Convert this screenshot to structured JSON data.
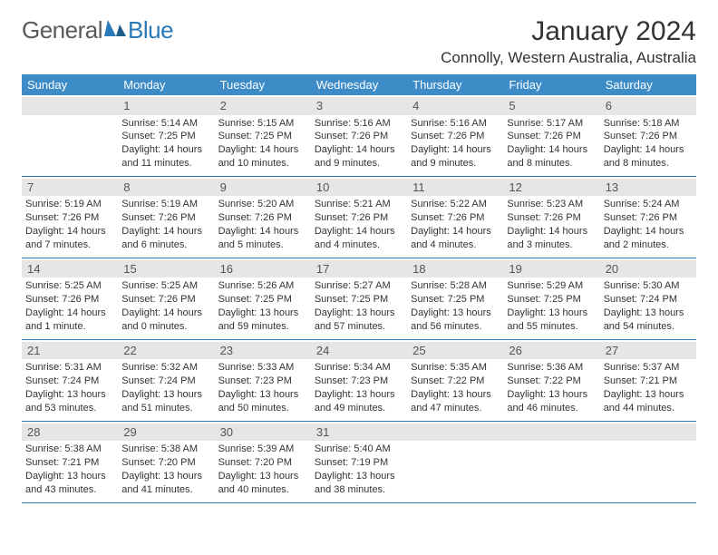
{
  "logo": {
    "general": "General",
    "blue": "Blue"
  },
  "title": "January 2024",
  "location": "Connolly, Western Australia, Australia",
  "day_headers": [
    "Sunday",
    "Monday",
    "Tuesday",
    "Wednesday",
    "Thursday",
    "Friday",
    "Saturday"
  ],
  "header_bg": "#3d8cc8",
  "daynum_bg": "#e6e6e6",
  "border_color": "#2a7ab8",
  "weeks": [
    [
      {
        "n": "",
        "sr": "",
        "ss": "",
        "dl": ""
      },
      {
        "n": "1",
        "sr": "Sunrise: 5:14 AM",
        "ss": "Sunset: 7:25 PM",
        "dl": "Daylight: 14 hours and 11 minutes."
      },
      {
        "n": "2",
        "sr": "Sunrise: 5:15 AM",
        "ss": "Sunset: 7:25 PM",
        "dl": "Daylight: 14 hours and 10 minutes."
      },
      {
        "n": "3",
        "sr": "Sunrise: 5:16 AM",
        "ss": "Sunset: 7:26 PM",
        "dl": "Daylight: 14 hours and 9 minutes."
      },
      {
        "n": "4",
        "sr": "Sunrise: 5:16 AM",
        "ss": "Sunset: 7:26 PM",
        "dl": "Daylight: 14 hours and 9 minutes."
      },
      {
        "n": "5",
        "sr": "Sunrise: 5:17 AM",
        "ss": "Sunset: 7:26 PM",
        "dl": "Daylight: 14 hours and 8 minutes."
      },
      {
        "n": "6",
        "sr": "Sunrise: 5:18 AM",
        "ss": "Sunset: 7:26 PM",
        "dl": "Daylight: 14 hours and 8 minutes."
      }
    ],
    [
      {
        "n": "7",
        "sr": "Sunrise: 5:19 AM",
        "ss": "Sunset: 7:26 PM",
        "dl": "Daylight: 14 hours and 7 minutes."
      },
      {
        "n": "8",
        "sr": "Sunrise: 5:19 AM",
        "ss": "Sunset: 7:26 PM",
        "dl": "Daylight: 14 hours and 6 minutes."
      },
      {
        "n": "9",
        "sr": "Sunrise: 5:20 AM",
        "ss": "Sunset: 7:26 PM",
        "dl": "Daylight: 14 hours and 5 minutes."
      },
      {
        "n": "10",
        "sr": "Sunrise: 5:21 AM",
        "ss": "Sunset: 7:26 PM",
        "dl": "Daylight: 14 hours and 4 minutes."
      },
      {
        "n": "11",
        "sr": "Sunrise: 5:22 AM",
        "ss": "Sunset: 7:26 PM",
        "dl": "Daylight: 14 hours and 4 minutes."
      },
      {
        "n": "12",
        "sr": "Sunrise: 5:23 AM",
        "ss": "Sunset: 7:26 PM",
        "dl": "Daylight: 14 hours and 3 minutes."
      },
      {
        "n": "13",
        "sr": "Sunrise: 5:24 AM",
        "ss": "Sunset: 7:26 PM",
        "dl": "Daylight: 14 hours and 2 minutes."
      }
    ],
    [
      {
        "n": "14",
        "sr": "Sunrise: 5:25 AM",
        "ss": "Sunset: 7:26 PM",
        "dl": "Daylight: 14 hours and 1 minute."
      },
      {
        "n": "15",
        "sr": "Sunrise: 5:25 AM",
        "ss": "Sunset: 7:26 PM",
        "dl": "Daylight: 14 hours and 0 minutes."
      },
      {
        "n": "16",
        "sr": "Sunrise: 5:26 AM",
        "ss": "Sunset: 7:25 PM",
        "dl": "Daylight: 13 hours and 59 minutes."
      },
      {
        "n": "17",
        "sr": "Sunrise: 5:27 AM",
        "ss": "Sunset: 7:25 PM",
        "dl": "Daylight: 13 hours and 57 minutes."
      },
      {
        "n": "18",
        "sr": "Sunrise: 5:28 AM",
        "ss": "Sunset: 7:25 PM",
        "dl": "Daylight: 13 hours and 56 minutes."
      },
      {
        "n": "19",
        "sr": "Sunrise: 5:29 AM",
        "ss": "Sunset: 7:25 PM",
        "dl": "Daylight: 13 hours and 55 minutes."
      },
      {
        "n": "20",
        "sr": "Sunrise: 5:30 AM",
        "ss": "Sunset: 7:24 PM",
        "dl": "Daylight: 13 hours and 54 minutes."
      }
    ],
    [
      {
        "n": "21",
        "sr": "Sunrise: 5:31 AM",
        "ss": "Sunset: 7:24 PM",
        "dl": "Daylight: 13 hours and 53 minutes."
      },
      {
        "n": "22",
        "sr": "Sunrise: 5:32 AM",
        "ss": "Sunset: 7:24 PM",
        "dl": "Daylight: 13 hours and 51 minutes."
      },
      {
        "n": "23",
        "sr": "Sunrise: 5:33 AM",
        "ss": "Sunset: 7:23 PM",
        "dl": "Daylight: 13 hours and 50 minutes."
      },
      {
        "n": "24",
        "sr": "Sunrise: 5:34 AM",
        "ss": "Sunset: 7:23 PM",
        "dl": "Daylight: 13 hours and 49 minutes."
      },
      {
        "n": "25",
        "sr": "Sunrise: 5:35 AM",
        "ss": "Sunset: 7:22 PM",
        "dl": "Daylight: 13 hours and 47 minutes."
      },
      {
        "n": "26",
        "sr": "Sunrise: 5:36 AM",
        "ss": "Sunset: 7:22 PM",
        "dl": "Daylight: 13 hours and 46 minutes."
      },
      {
        "n": "27",
        "sr": "Sunrise: 5:37 AM",
        "ss": "Sunset: 7:21 PM",
        "dl": "Daylight: 13 hours and 44 minutes."
      }
    ],
    [
      {
        "n": "28",
        "sr": "Sunrise: 5:38 AM",
        "ss": "Sunset: 7:21 PM",
        "dl": "Daylight: 13 hours and 43 minutes."
      },
      {
        "n": "29",
        "sr": "Sunrise: 5:38 AM",
        "ss": "Sunset: 7:20 PM",
        "dl": "Daylight: 13 hours and 41 minutes."
      },
      {
        "n": "30",
        "sr": "Sunrise: 5:39 AM",
        "ss": "Sunset: 7:20 PM",
        "dl": "Daylight: 13 hours and 40 minutes."
      },
      {
        "n": "31",
        "sr": "Sunrise: 5:40 AM",
        "ss": "Sunset: 7:19 PM",
        "dl": "Daylight: 13 hours and 38 minutes."
      },
      {
        "n": "",
        "sr": "",
        "ss": "",
        "dl": ""
      },
      {
        "n": "",
        "sr": "",
        "ss": "",
        "dl": ""
      },
      {
        "n": "",
        "sr": "",
        "ss": "",
        "dl": ""
      }
    ]
  ]
}
